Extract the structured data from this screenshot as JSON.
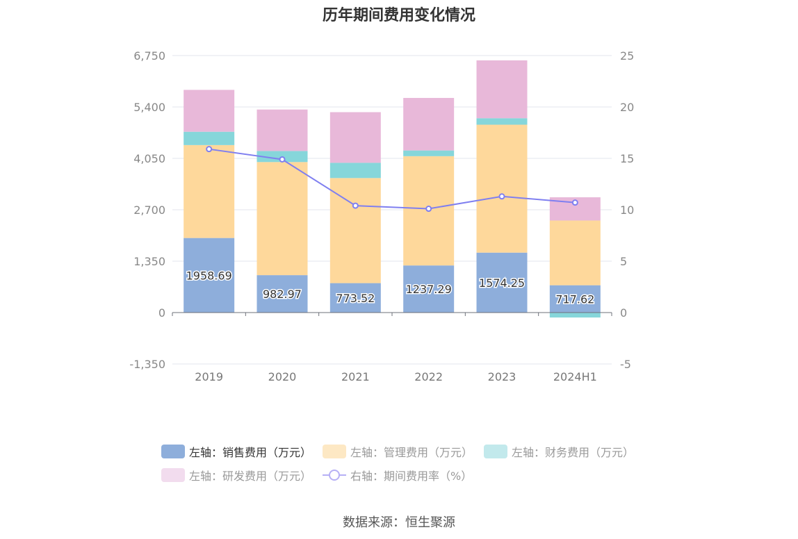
{
  "title": "历年期间费用变化情况",
  "source": "数据来源：恒生聚源",
  "colors": {
    "sales": "#8eaedb",
    "admin": "#fed89b",
    "finance": "#86d6da",
    "rnd": "#e8b8d9",
    "rate_line": "#7f7ff0",
    "legend_admin": "#fde8c4",
    "legend_finance": "#c2e9ec",
    "legend_rnd": "#f2dcee",
    "legend_line": "#b6b0f5"
  },
  "legend": [
    {
      "label": "左轴：销售费用（万元）",
      "key": "sales",
      "active": true
    },
    {
      "label": "左轴：管理费用（万元）",
      "key": "admin",
      "active": false
    },
    {
      "label": "左轴：财务费用（万元）",
      "key": "finance",
      "active": false
    },
    {
      "label": "左轴：研发费用（万元）",
      "key": "rnd",
      "active": false
    },
    {
      "label": "右轴：期间费用率（%）",
      "key": "rate",
      "active": false
    }
  ],
  "chart_data": {
    "type": "bar",
    "stacked": true,
    "categories": [
      "2019",
      "2020",
      "2021",
      "2022",
      "2023",
      "2024H1"
    ],
    "series": [
      {
        "name": "左轴：销售费用（万元）",
        "key": "sales",
        "axis": "left",
        "values": [
          1958.69,
          982.97,
          773.52,
          1237.29,
          1574.25,
          717.62
        ],
        "data_labels": [
          "1958.69",
          "982.97",
          "773.52",
          "1237.29",
          "1574.25",
          "717.62"
        ]
      },
      {
        "name": "左轴：管理费用（万元）",
        "key": "admin",
        "axis": "left",
        "values": [
          2440,
          2970,
          2760,
          2870,
          3360,
          1700
        ]
      },
      {
        "name": "左轴：财务费用（万元）",
        "key": "finance",
        "axis": "left",
        "values": [
          350,
          290,
          400,
          150,
          170,
          -130
        ]
      },
      {
        "name": "左轴：研发费用（万元）",
        "key": "rnd",
        "axis": "left",
        "values": [
          1100,
          1090,
          1330,
          1380,
          1520,
          610
        ]
      },
      {
        "name": "右轴：期间费用率（%）",
        "key": "rate",
        "axis": "right",
        "type": "line",
        "values": [
          15.9,
          14.9,
          10.4,
          10.1,
          11.3,
          10.7
        ]
      }
    ],
    "left_axis": {
      "ylim": [
        -1350,
        6750
      ],
      "ticks": [
        -1350,
        0,
        1350,
        2700,
        4050,
        5400,
        6750
      ],
      "tick_labels": [
        "-1,350",
        "0",
        "1,350",
        "2,700",
        "4,050",
        "5,400",
        "6,750"
      ]
    },
    "right_axis": {
      "ylim": [
        -5,
        25
      ],
      "ticks": [
        -5,
        0,
        5,
        10,
        15,
        20,
        25
      ],
      "tick_labels": [
        "-5",
        "0",
        "5",
        "10",
        "15",
        "20",
        "25"
      ]
    },
    "grid": true,
    "legend_position": "bottom"
  }
}
